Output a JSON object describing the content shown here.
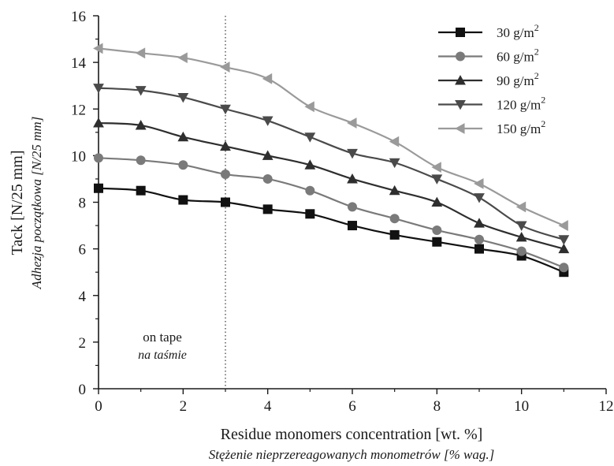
{
  "chart_data": {
    "type": "line",
    "xlabel": "Residue monomers concentration [wt. %]",
    "xlabel_secondary": "Stężenie nieprzereagowanych monometrów [% wag.]",
    "ylabel": "Tack [N/25 mm]",
    "ylabel_secondary": "Adhezja początkowa [N/25 mm]",
    "xlim": [
      0,
      12
    ],
    "ylim": [
      0,
      16
    ],
    "xticks": [
      "0",
      "2",
      "4",
      "6",
      "8",
      "10",
      "12"
    ],
    "yticks": [
      "0",
      "2",
      "4",
      "6",
      "8",
      "10",
      "12",
      "14",
      "16"
    ],
    "grid": false,
    "legend_position": "top-right",
    "reference_line_x": 3,
    "annotation": {
      "text": "on tape",
      "text_secondary": "na taśmie"
    },
    "x": [
      0,
      1,
      2,
      3,
      4,
      5,
      6,
      7,
      8,
      9,
      10,
      11
    ],
    "series": [
      {
        "label_main": "30 g/m",
        "label_sup": "2",
        "marker": "square",
        "color": "#111111",
        "values": [
          8.6,
          8.5,
          8.1,
          8.0,
          7.7,
          7.5,
          7.0,
          6.6,
          6.3,
          6.0,
          5.7,
          5.0
        ]
      },
      {
        "label_main": "60 g/m",
        "label_sup": "2",
        "marker": "circle",
        "color": "#7a7a7a",
        "values": [
          9.9,
          9.8,
          9.6,
          9.2,
          9.0,
          8.5,
          7.8,
          7.3,
          6.8,
          6.4,
          5.9,
          5.2
        ]
      },
      {
        "label_main": "90 g/m",
        "label_sup": "2",
        "marker": "triangle-up",
        "color": "#2e2e2e",
        "values": [
          11.4,
          11.3,
          10.8,
          10.4,
          10.0,
          9.6,
          9.0,
          8.5,
          8.0,
          7.1,
          6.5,
          6.0
        ]
      },
      {
        "label_main": "120 g/m",
        "label_sup": "2",
        "marker": "triangle-down",
        "color": "#4a4a4a",
        "values": [
          12.9,
          12.8,
          12.5,
          12.0,
          11.5,
          10.8,
          10.1,
          9.7,
          9.0,
          8.2,
          7.0,
          6.4
        ]
      },
      {
        "label_main": "150 g/m",
        "label_sup": "2",
        "marker": "triangle-left",
        "color": "#9a9a9a",
        "values": [
          14.6,
          14.4,
          14.2,
          13.8,
          13.3,
          12.1,
          11.4,
          10.6,
          9.5,
          8.8,
          7.8,
          7.0
        ]
      }
    ]
  }
}
